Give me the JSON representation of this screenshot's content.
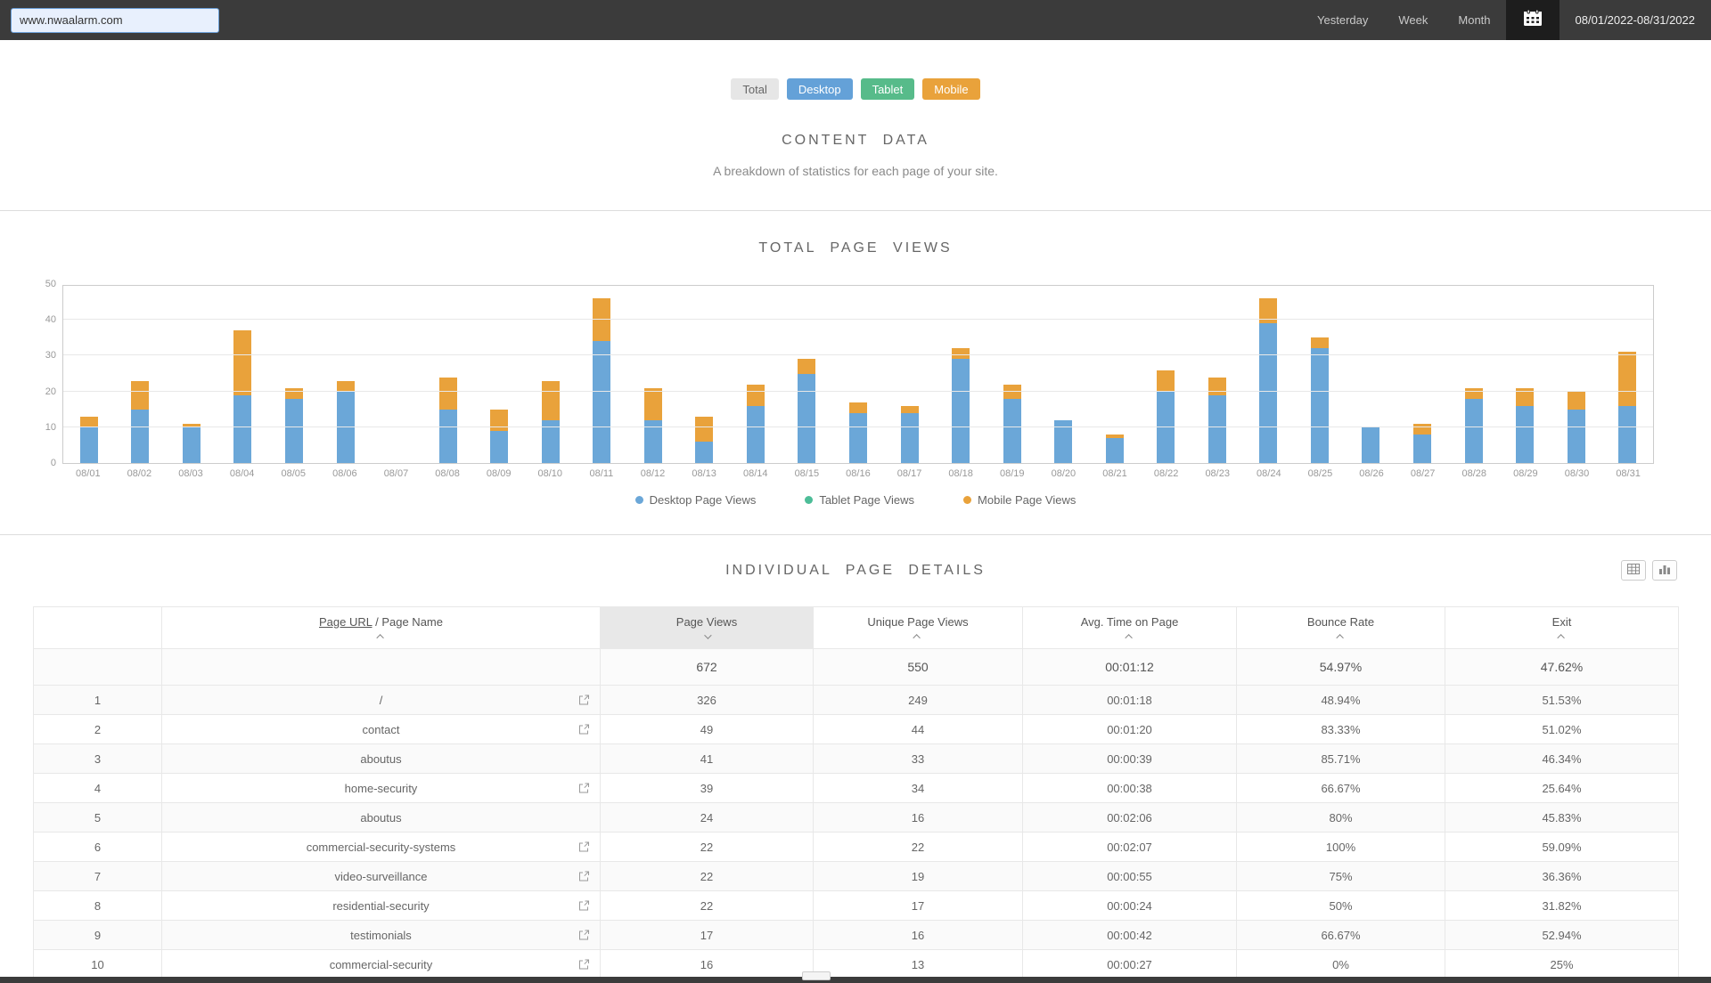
{
  "header": {
    "site_input_value": "www.nwaalarm.com",
    "nav": [
      {
        "label": "Yesterday"
      },
      {
        "label": "Week"
      },
      {
        "label": "Month"
      }
    ],
    "date_range": "08/01/2022-08/31/2022"
  },
  "device_filters": [
    {
      "label": "Total",
      "bg": "#e6e6e6",
      "color": "#666666"
    },
    {
      "label": "Desktop",
      "bg": "#64a1d8",
      "color": "#ffffff"
    },
    {
      "label": "Tablet",
      "bg": "#57bb8a",
      "color": "#ffffff"
    },
    {
      "label": "Mobile",
      "bg": "#e9a23b",
      "color": "#ffffff"
    }
  ],
  "content_section": {
    "title": "CONTENT DATA",
    "subtitle": "A breakdown of statistics for each page of your site."
  },
  "chart_section": {
    "title": "TOTAL PAGE VIEWS"
  },
  "chart_data": {
    "type": "bar",
    "stacked": true,
    "title": "TOTAL PAGE VIEWS",
    "xlabel": "",
    "ylabel": "",
    "ylim": [
      0,
      50
    ],
    "yticks": [
      0,
      10,
      20,
      30,
      40,
      50
    ],
    "grid": true,
    "legend_position": "bottom",
    "categories": [
      "08/01",
      "08/02",
      "08/03",
      "08/04",
      "08/05",
      "08/06",
      "08/07",
      "08/08",
      "08/09",
      "08/10",
      "08/11",
      "08/12",
      "08/13",
      "08/14",
      "08/15",
      "08/16",
      "08/17",
      "08/18",
      "08/19",
      "08/20",
      "08/21",
      "08/22",
      "08/23",
      "08/24",
      "08/25",
      "08/26",
      "08/27",
      "08/28",
      "08/29",
      "08/30",
      "08/31"
    ],
    "series": [
      {
        "name": "Desktop Page Views",
        "color": "#6ba7d8",
        "values": [
          10,
          15,
          10,
          19,
          18,
          20,
          0,
          15,
          9,
          12,
          34,
          12,
          6,
          16,
          25,
          14,
          14,
          29,
          18,
          12,
          7,
          20,
          19,
          39,
          32,
          10,
          8,
          18,
          16,
          15,
          16
        ]
      },
      {
        "name": "Tablet Page Views",
        "color": "#4dbd98",
        "values": [
          0,
          0,
          0,
          0,
          0,
          0,
          0,
          0,
          0,
          0,
          0,
          0,
          0,
          0,
          0,
          0,
          0,
          0,
          0,
          0,
          0,
          0,
          0,
          0,
          0,
          0,
          0,
          0,
          0,
          0,
          0
        ]
      },
      {
        "name": "Mobile Page Views",
        "color": "#e9a23b",
        "values": [
          3,
          8,
          1,
          18,
          3,
          3,
          0,
          9,
          6,
          11,
          12,
          9,
          7,
          6,
          4,
          3,
          2,
          3,
          4,
          0,
          1,
          6,
          5,
          7,
          3,
          0,
          3,
          3,
          5,
          5,
          15
        ]
      }
    ]
  },
  "table_section": {
    "title": "INDIVIDUAL PAGE DETAILS",
    "columns": {
      "page_link_part": "Page URL",
      "page_rest_part": " / Page Name",
      "views": "Page Views",
      "unique": "Unique Page Views",
      "avg_time": "Avg. Time on Page",
      "bounce": "Bounce Rate",
      "exit": "Exit"
    },
    "summary": {
      "views": "672",
      "unique": "550",
      "avg_time": "00:01:12",
      "bounce": "54.97%",
      "exit": "47.62%"
    },
    "rows": [
      {
        "rank": "1",
        "page": "/",
        "link": true,
        "views": "326",
        "unique": "249",
        "avg_time": "00:01:18",
        "bounce": "48.94%",
        "exit": "51.53%"
      },
      {
        "rank": "2",
        "page": "contact",
        "link": true,
        "views": "49",
        "unique": "44",
        "avg_time": "00:01:20",
        "bounce": "83.33%",
        "exit": "51.02%"
      },
      {
        "rank": "3",
        "page": "aboutus",
        "link": false,
        "views": "41",
        "unique": "33",
        "avg_time": "00:00:39",
        "bounce": "85.71%",
        "exit": "46.34%"
      },
      {
        "rank": "4",
        "page": "home-security",
        "link": true,
        "views": "39",
        "unique": "34",
        "avg_time": "00:00:38",
        "bounce": "66.67%",
        "exit": "25.64%"
      },
      {
        "rank": "5",
        "page": "aboutus",
        "link": false,
        "views": "24",
        "unique": "16",
        "avg_time": "00:02:06",
        "bounce": "80%",
        "exit": "45.83%"
      },
      {
        "rank": "6",
        "page": "commercial-security-systems",
        "link": true,
        "views": "22",
        "unique": "22",
        "avg_time": "00:02:07",
        "bounce": "100%",
        "exit": "59.09%"
      },
      {
        "rank": "7",
        "page": "video-surveillance",
        "link": true,
        "views": "22",
        "unique": "19",
        "avg_time": "00:00:55",
        "bounce": "75%",
        "exit": "36.36%"
      },
      {
        "rank": "8",
        "page": "residential-security",
        "link": true,
        "views": "22",
        "unique": "17",
        "avg_time": "00:00:24",
        "bounce": "50%",
        "exit": "31.82%"
      },
      {
        "rank": "9",
        "page": "testimonials",
        "link": true,
        "views": "17",
        "unique": "16",
        "avg_time": "00:00:42",
        "bounce": "66.67%",
        "exit": "52.94%"
      },
      {
        "rank": "10",
        "page": "commercial-security",
        "link": true,
        "views": "16",
        "unique": "13",
        "avg_time": "00:00:27",
        "bounce": "0%",
        "exit": "25%"
      }
    ]
  }
}
